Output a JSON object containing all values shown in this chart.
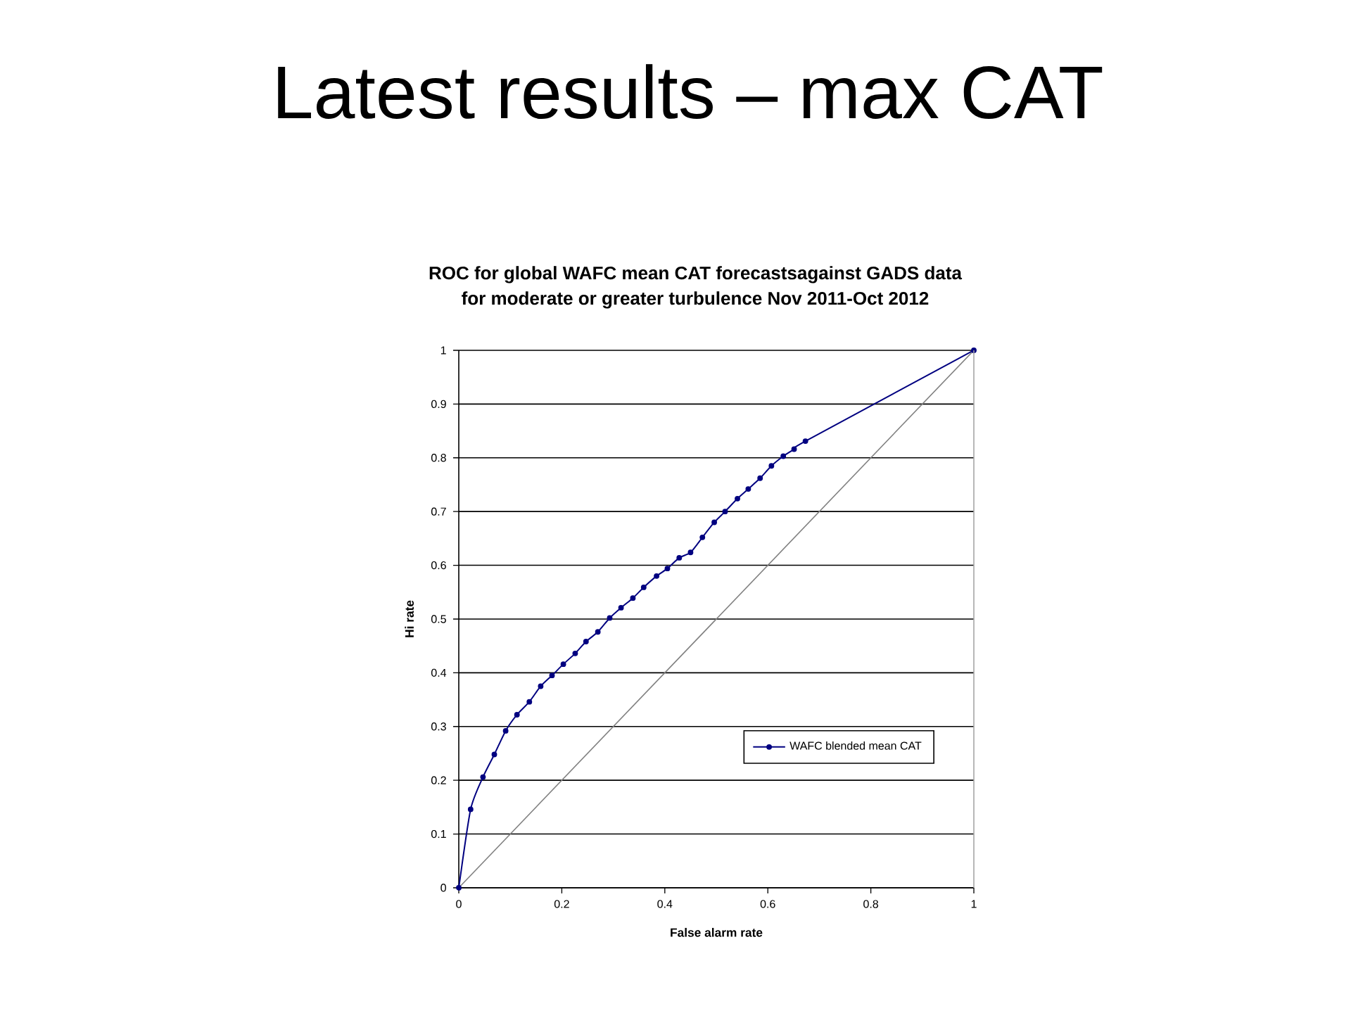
{
  "chart_data": {
    "type": "line",
    "title": "Latest results – max CAT",
    "subtitle": "ROC for global WAFC mean CAT forecastsagainst GADS data for moderate or greater turbulence Nov 2011-Oct 2012",
    "xlabel": "False alarm rate",
    "ylabel": "Hi rate",
    "series": [
      {
        "name": "WAFC blended mean CAT",
        "color": "#000080",
        "marker": "circle",
        "x": [
          0,
          0.023,
          0.047,
          0.069,
          0.091,
          0.113,
          0.137,
          0.159,
          0.181,
          0.203,
          0.226,
          0.247,
          0.27,
          0.293,
          0.315,
          0.338,
          0.359,
          0.384,
          0.405,
          0.428,
          0.45,
          0.473,
          0.496,
          0.517,
          0.541,
          0.562,
          0.585,
          0.607,
          0.63,
          0.651,
          0.673,
          1
        ],
        "values": [
          0,
          0.146,
          0.206,
          0.248,
          0.292,
          0.322,
          0.346,
          0.375,
          0.395,
          0.416,
          0.436,
          0.458,
          0.476,
          0.502,
          0.521,
          0.539,
          0.559,
          0.58,
          0.594,
          0.614,
          0.624,
          0.652,
          0.68,
          0.7,
          0.724,
          0.742,
          0.762,
          0.785,
          0.803,
          0.816,
          0.831,
          1
        ]
      },
      {
        "color": "#808080",
        "marker": "none",
        "x": [
          0,
          1
        ],
        "values": [
          0,
          1
        ]
      }
    ],
    "xlim": [
      0,
      1
    ],
    "ylim": [
      0,
      1
    ],
    "xticks": [
      0,
      0.2,
      0.4,
      0.6,
      0.8,
      1
    ],
    "yticks": [
      0,
      0.1,
      0.2,
      0.3,
      0.4,
      0.5,
      0.6,
      0.7,
      0.8,
      0.9,
      1
    ],
    "grid": "y",
    "legend": "bottom right"
  }
}
